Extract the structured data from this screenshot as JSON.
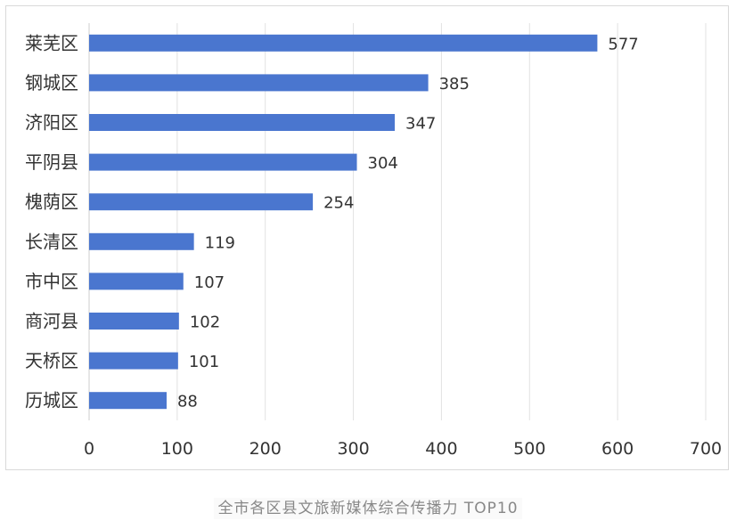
{
  "colors": {
    "bar": "#4a76cf",
    "grid": "#e2e2e2",
    "text": "#333333",
    "caption": "#888888"
  },
  "chart_data": {
    "type": "bar",
    "orientation": "horizontal",
    "categories": [
      "莱芜区",
      "钢城区",
      "济阳区",
      "平阴县",
      "槐荫区",
      "长清区",
      "市中区",
      "商河县",
      "天桥区",
      "历城区"
    ],
    "values": [
      577,
      385,
      347,
      304,
      254,
      119,
      107,
      102,
      101,
      88
    ],
    "xlim": [
      0,
      700
    ],
    "xticks": [
      0,
      100,
      200,
      300,
      400,
      500,
      600,
      700
    ],
    "grid": "vertical",
    "data_labels": true,
    "legend": "none"
  },
  "caption": "全市各区县文旅新媒体综合传播力 TOP10"
}
